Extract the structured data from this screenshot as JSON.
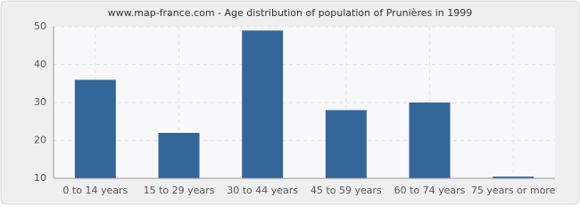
{
  "chart_data": {
    "type": "bar",
    "title": "www.map-france.com - Age distribution of population of Prunières in 1999",
    "categories": [
      "0 to 14 years",
      "15 to 29 years",
      "30 to 44 years",
      "45 to 59 years",
      "60 to 74 years",
      "75 years or more"
    ],
    "values": [
      36,
      22,
      49,
      28,
      30,
      10
    ],
    "color": "#336699",
    "ylim": [
      10,
      50
    ],
    "yticks": [
      10,
      20,
      30,
      40,
      50
    ],
    "grid": true
  }
}
